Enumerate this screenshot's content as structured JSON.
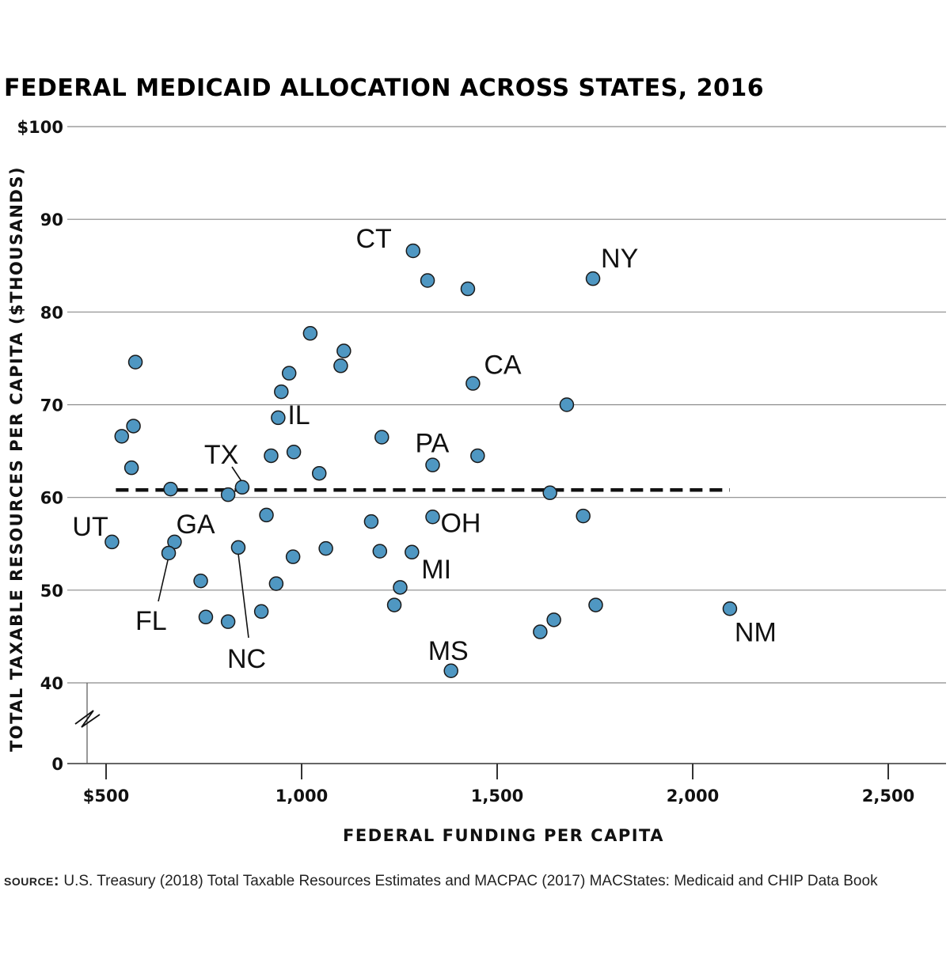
{
  "chart_data": {
    "type": "scatter",
    "title": "FEDERAL MEDICAID ALLOCATION ACROSS STATES, 2016",
    "xlabel": "FEDERAL FUNDING PER CAPITA",
    "ylabel": "TOTAL TAXABLE RESOURCES PER CAPITA ($THOUSANDS)",
    "xlim": [
      455,
      2645
    ],
    "ylim": [
      0,
      100
    ],
    "y_axis_break": [
      0,
      40
    ],
    "x_ticks": [
      {
        "value": 500,
        "label": "$500"
      },
      {
        "value": 1000,
        "label": "1,000"
      },
      {
        "value": 1500,
        "label": "1,500"
      },
      {
        "value": 2000,
        "label": "2,000"
      },
      {
        "value": 2500,
        "label": "2,500"
      }
    ],
    "y_ticks": [
      {
        "value": 0,
        "label": "0"
      },
      {
        "value": 40,
        "label": "40"
      },
      {
        "value": 50,
        "label": "50"
      },
      {
        "value": 60,
        "label": "60"
      },
      {
        "value": 70,
        "label": "70"
      },
      {
        "value": 80,
        "label": "80"
      },
      {
        "value": 90,
        "label": "90"
      },
      {
        "value": 100,
        "label": "$100"
      }
    ],
    "grid": "horizontal",
    "point_color": "#4f97c2",
    "reference_line": {
      "style": "dashed",
      "x_start": 525,
      "x_end": 2095,
      "y": 60.8
    },
    "points": [
      {
        "x": 1285,
        "y": 86.6,
        "label": "CT"
      },
      {
        "x": 1322,
        "y": 83.4
      },
      {
        "x": 1425,
        "y": 82.5
      },
      {
        "x": 1745,
        "y": 83.6,
        "label": "NY"
      },
      {
        "x": 1022,
        "y": 77.7
      },
      {
        "x": 1108,
        "y": 75.8
      },
      {
        "x": 1100,
        "y": 74.2
      },
      {
        "x": 575,
        "y": 74.6
      },
      {
        "x": 968,
        "y": 73.4
      },
      {
        "x": 1438,
        "y": 72.3,
        "label": "CA"
      },
      {
        "x": 948,
        "y": 71.4
      },
      {
        "x": 1678,
        "y": 70.0
      },
      {
        "x": 940,
        "y": 68.6,
        "label": "IL"
      },
      {
        "x": 570,
        "y": 67.7
      },
      {
        "x": 540,
        "y": 66.6
      },
      {
        "x": 1205,
        "y": 66.5
      },
      {
        "x": 922,
        "y": 64.5
      },
      {
        "x": 980,
        "y": 64.9
      },
      {
        "x": 1450,
        "y": 64.5
      },
      {
        "x": 1335,
        "y": 63.5,
        "label": "PA"
      },
      {
        "x": 565,
        "y": 63.2
      },
      {
        "x": 1045,
        "y": 62.6
      },
      {
        "x": 665,
        "y": 60.9
      },
      {
        "x": 848,
        "y": 61.1,
        "label": "TX"
      },
      {
        "x": 812,
        "y": 60.3
      },
      {
        "x": 1635,
        "y": 60.5
      },
      {
        "x": 910,
        "y": 58.1
      },
      {
        "x": 1335,
        "y": 57.9,
        "label": "OH"
      },
      {
        "x": 1720,
        "y": 58.0
      },
      {
        "x": 1178,
        "y": 57.4
      },
      {
        "x": 515,
        "y": 55.2,
        "label": "UT"
      },
      {
        "x": 675,
        "y": 55.2,
        "label": "GA"
      },
      {
        "x": 838,
        "y": 54.6,
        "label": "NC"
      },
      {
        "x": 1062,
        "y": 54.5
      },
      {
        "x": 1200,
        "y": 54.2
      },
      {
        "x": 1282,
        "y": 54.1,
        "label": "MI"
      },
      {
        "x": 660,
        "y": 54.0,
        "label": "FL"
      },
      {
        "x": 978,
        "y": 53.6
      },
      {
        "x": 742,
        "y": 51.0
      },
      {
        "x": 935,
        "y": 50.7
      },
      {
        "x": 1252,
        "y": 50.3
      },
      {
        "x": 1237,
        "y": 48.4
      },
      {
        "x": 1752,
        "y": 48.4
      },
      {
        "x": 2095,
        "y": 48.0,
        "label": "NM"
      },
      {
        "x": 897,
        "y": 47.7
      },
      {
        "x": 755,
        "y": 47.1
      },
      {
        "x": 812,
        "y": 46.6
      },
      {
        "x": 1645,
        "y": 46.8
      },
      {
        "x": 1610,
        "y": 45.5
      },
      {
        "x": 1382,
        "y": 41.3,
        "label": "MS"
      }
    ]
  },
  "source": {
    "label": "SOURCE:",
    "text": "U.S. Treasury (2018) Total Taxable Resources Estimates and MACPAC (2017) MACStates: Medicaid and CHIP Data Book"
  }
}
